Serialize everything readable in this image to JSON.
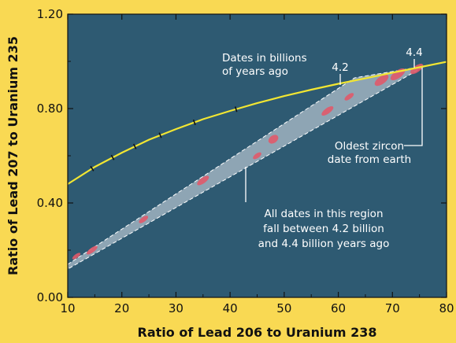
{
  "chart_data": {
    "type": "line",
    "title": "",
    "xlabel": "Ratio of Lead 206 to Uranium 238",
    "ylabel": "Ratio of Lead 207 to Uranium 235",
    "xlim": [
      10,
      80
    ],
    "ylim": [
      0,
      1.2
    ],
    "x_ticks": [
      10,
      20,
      30,
      40,
      50,
      60,
      70,
      80
    ],
    "x_tick_labels": [
      "10",
      "20",
      "30",
      "40",
      "50",
      "60",
      "70",
      "80"
    ],
    "y_ticks": [
      0,
      0.4,
      0.8,
      1.2
    ],
    "y_tick_labels": [
      "0.00",
      "0.40",
      "0.80",
      "1.20"
    ],
    "grid": false,
    "series": [
      {
        "kind": "concordia-curve",
        "color": "#f2e632",
        "x": [
          10,
          15,
          20,
          25,
          30,
          35,
          40,
          45,
          50,
          55,
          60,
          65,
          70,
          75,
          80
        ],
        "y": [
          0.48,
          0.553,
          0.613,
          0.668,
          0.713,
          0.755,
          0.79,
          0.823,
          0.853,
          0.88,
          0.905,
          0.928,
          0.952,
          0.975,
          0.998
        ],
        "tick_marks_x": [
          14.5,
          18.3,
          22.4,
          27.1,
          33.4,
          41.1
        ]
      }
    ],
    "region": {
      "label": "All dates in this region fall between 4.2 billion and 4.4 billion years ago",
      "fill": "#8ea5b4",
      "stroke": "#ffffff",
      "polygon": [
        [
          10,
          0.14
        ],
        [
          10,
          0.12
        ],
        [
          76,
          0.98
        ],
        [
          63,
          0.93
        ]
      ]
    },
    "zircon_ellipses": [
      {
        "x": 11.6,
        "y": 0.175,
        "rx": 0.9,
        "ry": 0.008,
        "angle": -36
      },
      {
        "x": 14.5,
        "y": 0.2,
        "rx": 1.2,
        "ry": 0.01,
        "angle": -36
      },
      {
        "x": 24,
        "y": 0.33,
        "rx": 1.0,
        "ry": 0.01,
        "angle": -36
      },
      {
        "x": 35,
        "y": 0.495,
        "rx": 1.3,
        "ry": 0.012,
        "angle": -36
      },
      {
        "x": 45,
        "y": 0.6,
        "rx": 0.9,
        "ry": 0.01,
        "angle": -36
      },
      {
        "x": 48,
        "y": 0.67,
        "rx": 1.0,
        "ry": 0.016,
        "angle": -36
      },
      {
        "x": 58,
        "y": 0.79,
        "rx": 1.3,
        "ry": 0.012,
        "angle": -36
      },
      {
        "x": 62,
        "y": 0.85,
        "rx": 1.0,
        "ry": 0.01,
        "angle": -36
      },
      {
        "x": 68,
        "y": 0.92,
        "rx": 1.5,
        "ry": 0.016,
        "angle": -36
      },
      {
        "x": 71,
        "y": 0.945,
        "rx": 1.6,
        "ry": 0.016,
        "angle": -36
      },
      {
        "x": 74.5,
        "y": 0.968,
        "rx": 1.4,
        "ry": 0.014,
        "angle": -36
      }
    ],
    "annotations": [
      {
        "name": "dates-in-billions",
        "lines": [
          "Dates in billions",
          "of years ago"
        ]
      },
      {
        "name": "age-4-2",
        "lines": [
          "4.2"
        ]
      },
      {
        "name": "age-4-4",
        "lines": [
          "4.4"
        ]
      },
      {
        "name": "oldest-zircon",
        "lines": [
          "Oldest zircon",
          "date from earth"
        ]
      },
      {
        "name": "all-dates-region",
        "lines": [
          "All dates in this region",
          "fall between 4.2 billion",
          "and 4.4 billion years ago"
        ]
      }
    ],
    "colors": {
      "background": "#f9d953",
      "plot_background": "#2e5a72",
      "concordia": "#f2e632",
      "region_fill": "#8ea5b4",
      "ellipse": "#e05a6a",
      "annotation": "#ffffff"
    }
  }
}
